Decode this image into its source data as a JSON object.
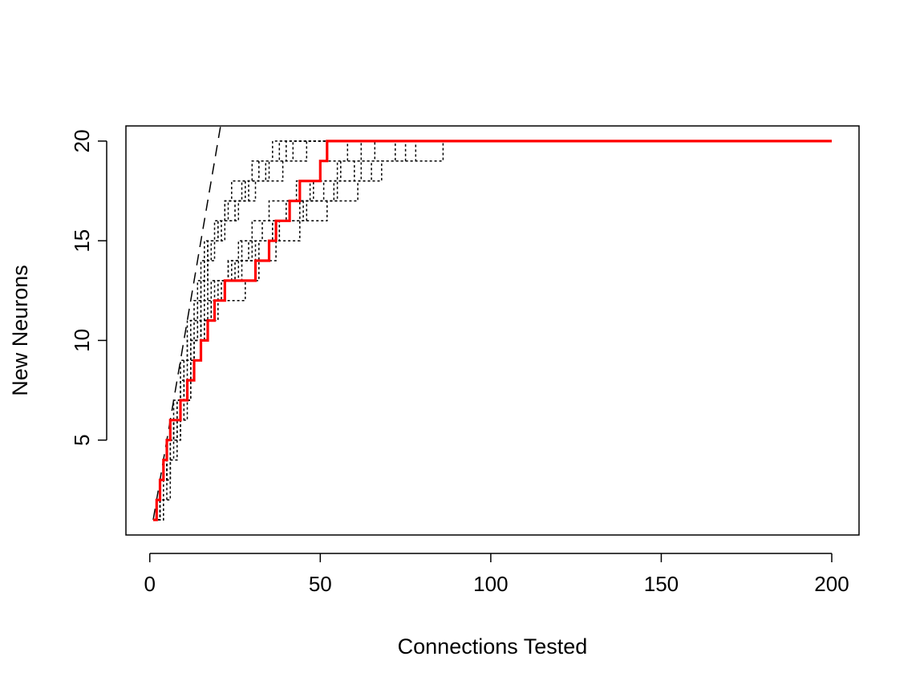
{
  "chart_data": {
    "type": "line",
    "title": "",
    "xlabel": "Connections Tested",
    "ylabel": "New Neurons",
    "xlim": [
      -7,
      208
    ],
    "ylim": [
      0.24,
      20.76
    ],
    "xticks": [
      0,
      50,
      100,
      150,
      200
    ],
    "yticks": [
      5,
      10,
      15,
      20
    ],
    "grid": false,
    "legend": "none",
    "colors": {
      "highlight": "#ff0000",
      "simulation": "#000000",
      "reference": "#000000",
      "frame": "#000000"
    },
    "reference_line": {
      "style": "dashed",
      "x": [
        1,
        20.8
      ],
      "y": [
        1,
        20.8
      ]
    },
    "series": [
      {
        "style": "dotted",
        "steps": [
          [
            1,
            1
          ],
          [
            3,
            3
          ],
          [
            6,
            5
          ],
          [
            8,
            7
          ],
          [
            10,
            8
          ],
          [
            12,
            10
          ],
          [
            14,
            12
          ],
          [
            16,
            14
          ],
          [
            18,
            15
          ],
          [
            20,
            16
          ],
          [
            22,
            17
          ],
          [
            24,
            18
          ],
          [
            30,
            19
          ],
          [
            38,
            20
          ],
          [
            200,
            20
          ]
        ]
      },
      {
        "style": "dotted",
        "steps": [
          [
            1,
            1
          ],
          [
            4,
            2
          ],
          [
            5,
            4
          ],
          [
            7,
            6
          ],
          [
            9,
            8
          ],
          [
            11,
            10
          ],
          [
            13,
            11
          ],
          [
            15,
            13
          ],
          [
            17,
            15
          ],
          [
            21,
            16
          ],
          [
            25,
            17
          ],
          [
            29,
            18
          ],
          [
            35,
            19
          ],
          [
            42,
            20
          ],
          [
            200,
            20
          ]
        ]
      },
      {
        "style": "dotted",
        "steps": [
          [
            1,
            1
          ],
          [
            3,
            3
          ],
          [
            5,
            5
          ],
          [
            8,
            7
          ],
          [
            10,
            9
          ],
          [
            12,
            10
          ],
          [
            15,
            12
          ],
          [
            17,
            14
          ],
          [
            19,
            15
          ],
          [
            22,
            16
          ],
          [
            26,
            17
          ],
          [
            31,
            18
          ],
          [
            39,
            19
          ],
          [
            46,
            20
          ],
          [
            200,
            20
          ]
        ]
      },
      {
        "style": "dotted",
        "steps": [
          [
            1,
            1
          ],
          [
            3,
            2
          ],
          [
            6,
            4
          ],
          [
            8,
            6
          ],
          [
            11,
            8
          ],
          [
            13,
            10
          ],
          [
            16,
            11
          ],
          [
            18,
            13
          ],
          [
            23,
            14
          ],
          [
            26,
            15
          ],
          [
            30,
            16
          ],
          [
            35,
            17
          ],
          [
            43,
            18
          ],
          [
            50,
            19
          ],
          [
            58,
            20
          ],
          [
            200,
            20
          ]
        ]
      },
      {
        "style": "dotted",
        "steps": [
          [
            1,
            1
          ],
          [
            3,
            3
          ],
          [
            6,
            5
          ],
          [
            9,
            7
          ],
          [
            12,
            9
          ],
          [
            15,
            11
          ],
          [
            18,
            12
          ],
          [
            21,
            13
          ],
          [
            25,
            14
          ],
          [
            30,
            15
          ],
          [
            38,
            16
          ],
          [
            46,
            17
          ],
          [
            55,
            18
          ],
          [
            65,
            19
          ],
          [
            72,
            20
          ],
          [
            200,
            20
          ]
        ]
      },
      {
        "style": "dotted",
        "steps": [
          [
            1,
            1
          ],
          [
            3,
            3
          ],
          [
            5,
            5
          ],
          [
            7,
            6
          ],
          [
            9,
            8
          ],
          [
            12,
            10
          ],
          [
            14,
            11
          ],
          [
            17,
            12
          ],
          [
            20,
            13
          ],
          [
            24,
            14
          ],
          [
            29,
            15
          ],
          [
            36,
            16
          ],
          [
            44,
            17
          ],
          [
            51,
            18
          ],
          [
            60,
            19
          ],
          [
            66,
            20
          ],
          [
            200,
            20
          ]
        ]
      },
      {
        "style": "dotted",
        "steps": [
          [
            1,
            1
          ],
          [
            4,
            3
          ],
          [
            6,
            5
          ],
          [
            9,
            7
          ],
          [
            12,
            9
          ],
          [
            15,
            10
          ],
          [
            17,
            11
          ],
          [
            20,
            12
          ],
          [
            28,
            13
          ],
          [
            32,
            14
          ],
          [
            37,
            15
          ],
          [
            44,
            16
          ],
          [
            52,
            17
          ],
          [
            61,
            18
          ],
          [
            68,
            19
          ],
          [
            78,
            20
          ],
          [
            200,
            20
          ]
        ]
      },
      {
        "style": "dotted",
        "steps": [
          [
            1,
            1
          ],
          [
            3,
            3
          ],
          [
            6,
            5
          ],
          [
            8,
            7
          ],
          [
            10,
            9
          ],
          [
            12,
            11
          ],
          [
            14,
            13
          ],
          [
            16,
            15
          ],
          [
            19,
            16
          ],
          [
            22,
            17
          ],
          [
            28,
            18
          ],
          [
            34,
            19
          ],
          [
            40,
            20
          ],
          [
            200,
            20
          ]
        ]
      },
      {
        "style": "dotted",
        "steps": [
          [
            1,
            1
          ],
          [
            3,
            3
          ],
          [
            5,
            5
          ],
          [
            7,
            6
          ],
          [
            10,
            8
          ],
          [
            13,
            10
          ],
          [
            16,
            12
          ],
          [
            19,
            13
          ],
          [
            23,
            14
          ],
          [
            27,
            15
          ],
          [
            33,
            16
          ],
          [
            40,
            17
          ],
          [
            47,
            18
          ],
          [
            55,
            19
          ],
          [
            62,
            20
          ],
          [
            200,
            20
          ]
        ]
      },
      {
        "style": "dotted",
        "steps": [
          [
            1,
            1
          ],
          [
            3,
            3
          ],
          [
            6,
            5
          ],
          [
            9,
            7
          ],
          [
            12,
            9
          ],
          [
            15,
            11
          ],
          [
            18,
            12
          ],
          [
            22,
            13
          ],
          [
            27,
            14
          ],
          [
            32,
            15
          ],
          [
            38,
            16
          ],
          [
            45,
            17
          ],
          [
            54,
            18
          ],
          [
            62,
            19
          ],
          [
            86,
            20
          ],
          [
            200,
            20
          ]
        ]
      },
      {
        "style": "dotted",
        "steps": [
          [
            1,
            1
          ],
          [
            3,
            3
          ],
          [
            5,
            5
          ],
          [
            7,
            7
          ],
          [
            9,
            9
          ],
          [
            11,
            11
          ],
          [
            13,
            12
          ],
          [
            15,
            14
          ],
          [
            17,
            15
          ],
          [
            20,
            16
          ],
          [
            23,
            17
          ],
          [
            27,
            18
          ],
          [
            32,
            19
          ],
          [
            36,
            20
          ],
          [
            200,
            20
          ]
        ]
      },
      {
        "style": "dotted",
        "steps": [
          [
            1,
            1
          ],
          [
            3,
            3
          ],
          [
            5,
            5
          ],
          [
            8,
            6
          ],
          [
            10,
            8
          ],
          [
            13,
            9
          ],
          [
            15,
            11
          ],
          [
            18,
            12
          ],
          [
            22,
            13
          ],
          [
            26,
            14
          ],
          [
            31,
            15
          ],
          [
            36,
            16
          ],
          [
            41,
            17
          ],
          [
            48,
            18
          ],
          [
            56,
            19
          ],
          [
            75,
            20
          ],
          [
            200,
            20
          ]
        ]
      },
      {
        "style": "solid",
        "highlight": true,
        "steps": [
          [
            1,
            1
          ],
          [
            2,
            2
          ],
          [
            3,
            3
          ],
          [
            4,
            4
          ],
          [
            5,
            5
          ],
          [
            6,
            6
          ],
          [
            9,
            7
          ],
          [
            11,
            8
          ],
          [
            13,
            9
          ],
          [
            15,
            10
          ],
          [
            17,
            11
          ],
          [
            19,
            12
          ],
          [
            22,
            13
          ],
          [
            31,
            14
          ],
          [
            35,
            15
          ],
          [
            37,
            16
          ],
          [
            41,
            17
          ],
          [
            44,
            18
          ],
          [
            50,
            19
          ],
          [
            52,
            20
          ],
          [
            200,
            20
          ]
        ]
      }
    ]
  }
}
